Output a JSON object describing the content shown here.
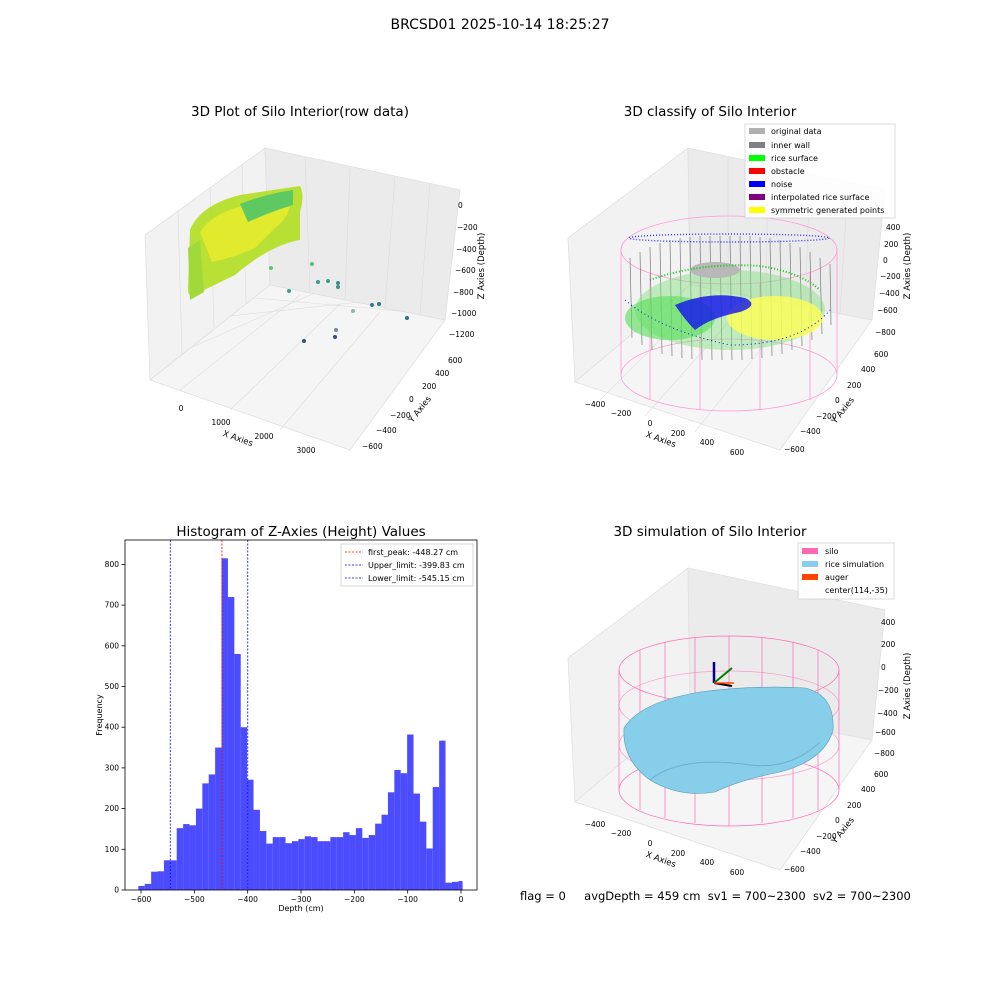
{
  "figure": {
    "suptitle": "BRCSD01 2025-10-14 18:25:27"
  },
  "panels": {
    "raw": {
      "title": "3D Plot of Silo Interior(row data)",
      "xlabel": "X Axies",
      "ylabel": "Y Axies",
      "zlabel": "Z Axies (Depth)",
      "xticks": [
        "0",
        "1000",
        "2000",
        "3000"
      ],
      "yticks": [
        "600",
        "400",
        "200",
        "0",
        "−200",
        "−400",
        "−600"
      ],
      "zticks": [
        "0",
        "−200",
        "−400",
        "−600",
        "−800",
        "−1000",
        "−1200"
      ]
    },
    "classify": {
      "title": "3D classify of Silo Interior",
      "xlabel": "X Axies",
      "ylabel": "Y Axies",
      "zlabel": "Z Axies (Depth)",
      "xticks": [
        "−400",
        "−200",
        "0",
        "200",
        "400",
        "600"
      ],
      "yticks": [
        "600",
        "400",
        "200",
        "0",
        "−200",
        "−400",
        "−600"
      ],
      "zticks": [
        "400",
        "200",
        "0",
        "−200",
        "−400",
        "−600",
        "−800"
      ],
      "legend": [
        {
          "label": "original data",
          "color": "#b0b0b0"
        },
        {
          "label": "inner wall",
          "color": "#808080"
        },
        {
          "label": "rice surface",
          "color": "#00ff00"
        },
        {
          "label": "obstacle",
          "color": "#ff0000"
        },
        {
          "label": "noise",
          "color": "#0000ff"
        },
        {
          "label": "interpolated rice surface",
          "color": "#800080"
        },
        {
          "label": "symmetric generated points",
          "color": "#ffff00"
        }
      ]
    },
    "simulation": {
      "title": "3D simulation of Silo Interior",
      "xlabel": "X Axies",
      "ylabel": "Y Axies",
      "zlabel": "Z Axies (Depth)",
      "xticks": [
        "−400",
        "−200",
        "0",
        "200",
        "400",
        "600"
      ],
      "yticks": [
        "600",
        "400",
        "200",
        "0",
        "−200",
        "−400",
        "−600"
      ],
      "zticks": [
        "400",
        "200",
        "0",
        "−200",
        "−400",
        "−600",
        "−800"
      ],
      "legend": [
        {
          "label": "silo",
          "color": "#ff69b4"
        },
        {
          "label": "rice simulation",
          "color": "#87ceeb"
        },
        {
          "label": "auger",
          "color": "#ff4500"
        },
        {
          "label": "center(114,-35)",
          "color": ""
        }
      ]
    }
  },
  "chart_data": {
    "type": "bar",
    "title": "Histogram of Z-Axies (Height) Values",
    "xlabel": "Depth (cm)",
    "ylabel": "Frequency",
    "xlim": [
      -630,
      30
    ],
    "ylim": [
      0,
      860
    ],
    "bar_color": "#0000ff",
    "xtick_values": [
      -600,
      -500,
      -400,
      -300,
      -200,
      -100,
      0
    ],
    "xtick_labels": [
      "−600",
      "−500",
      "−400",
      "−300",
      "−200",
      "−100",
      "0"
    ],
    "ytick_values": [
      0,
      100,
      200,
      300,
      400,
      500,
      600,
      700,
      800
    ],
    "ytick_labels": [
      "0",
      "100",
      "200",
      "300",
      "400",
      "500",
      "600",
      "700",
      "800"
    ],
    "bin_edges": [
      -605,
      -593,
      -581,
      -569,
      -557,
      -545,
      -533,
      -521,
      -509,
      -497,
      -485,
      -473,
      -461,
      -449,
      -437,
      -425,
      -413,
      -401,
      -389,
      -377,
      -365,
      -353,
      -341,
      -329,
      -317,
      -305,
      -293,
      -281,
      -269,
      -257,
      -245,
      -233,
      -221,
      -209,
      -197,
      -185,
      -173,
      -161,
      -149,
      -137,
      -125,
      -113,
      -101,
      -89,
      -77,
      -65,
      -53,
      -41,
      -29,
      -17,
      -5,
      3
    ],
    "values": [
      10,
      15,
      45,
      46,
      73,
      73,
      152,
      162,
      159,
      200,
      262,
      284,
      350,
      815,
      720,
      580,
      400,
      271,
      197,
      145,
      114,
      130,
      130,
      115,
      120,
      125,
      132,
      130,
      120,
      120,
      130,
      130,
      142,
      135,
      152,
      128,
      135,
      163,
      185,
      240,
      295,
      287,
      382,
      237,
      168,
      102,
      253,
      367,
      18,
      20,
      22
    ],
    "vlines": [
      {
        "label": "first_peak: -448.27 cm",
        "x": -448.27,
        "color": "#ff0000"
      },
      {
        "label": "Upper_limit: -399.83 cm",
        "x": -399.83,
        "color": "#0000ff"
      },
      {
        "label": "Lower_limit: -545.15 cm",
        "x": -545.15,
        "color": "#0000ff"
      }
    ],
    "legend_position": "top-right",
    "grid": false
  },
  "status": {
    "flag": "flag = 0",
    "avg": "avgDepth = 459 cm",
    "sv1": "sv1 = 700~2300",
    "sv2": "sv2 = 700~2300"
  }
}
